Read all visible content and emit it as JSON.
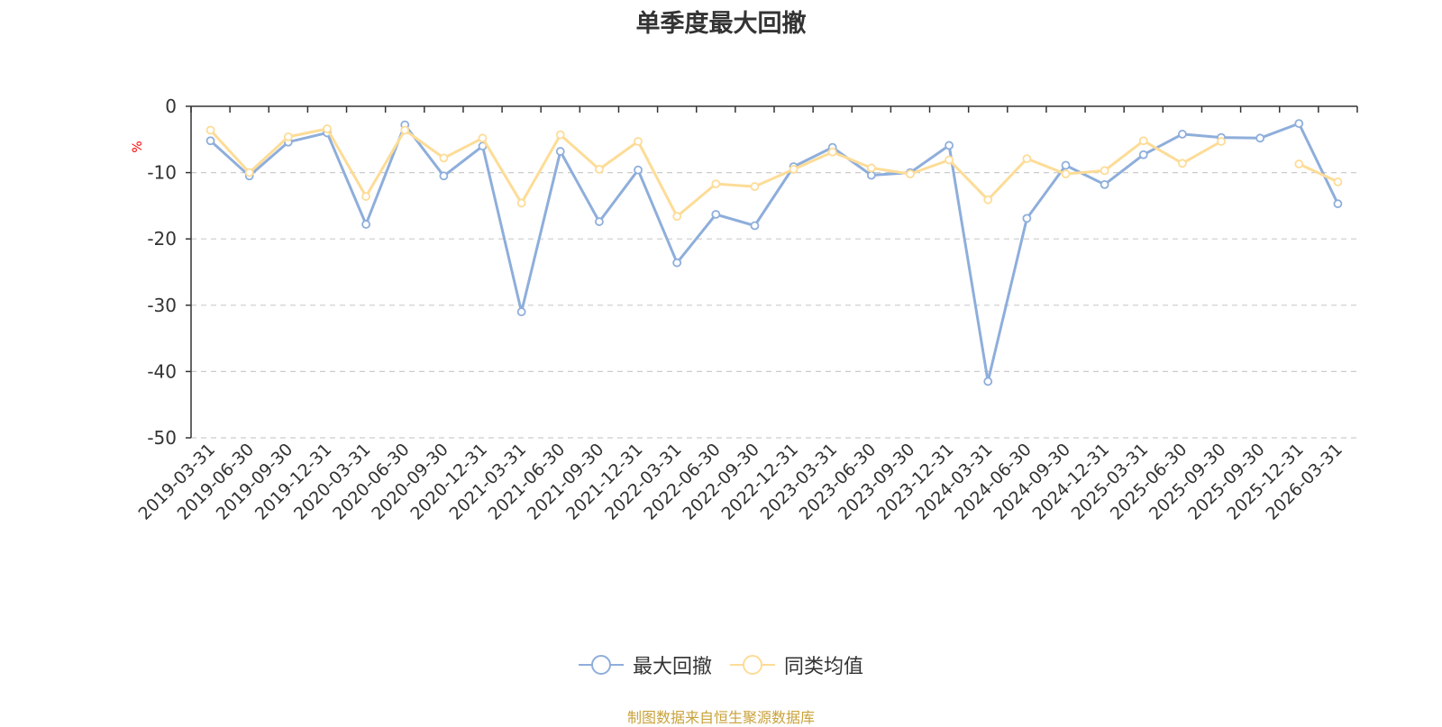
{
  "chart_data": {
    "type": "line",
    "title": "单季度最大回撤",
    "ylabel": "%",
    "ylim": [
      -50,
      0
    ],
    "yticks": [
      0,
      -10,
      -20,
      -30,
      -40,
      -50
    ],
    "grid": true,
    "legend_position": "bottom",
    "categories": [
      "2019-03-31",
      "2019-06-30",
      "2019-09-30",
      "2019-12-31",
      "2020-03-31",
      "2020-06-30",
      "2020-09-30",
      "2020-12-31",
      "2021-03-31",
      "2021-06-30",
      "2021-09-30",
      "2021-12-31",
      "2022-03-31",
      "2022-06-30",
      "2022-09-30",
      "2022-12-31",
      "2023-03-31",
      "2023-06-30",
      "2023-09-30",
      "2023-12-31",
      "2024-03-31",
      "2024-06-30",
      "2024-09-30",
      "2024-12-31",
      "2025-03-31",
      "2025-06-30",
      "2025-09-30",
      "2025-09-30",
      "2025-12-31",
      "2026-03-31"
    ],
    "series": [
      {
        "name": "最大回撤",
        "color": "#8eaedb",
        "values": [
          -5.2,
          -10.5,
          -5.4,
          -4.0,
          -17.8,
          -2.8,
          -10.5,
          -6.0,
          -31.0,
          -6.8,
          -17.4,
          -9.6,
          -23.6,
          -16.3,
          -18.0,
          -9.1,
          -6.2,
          -10.4,
          -10.0,
          -5.9,
          -41.5,
          -16.9,
          -8.9,
          -11.8,
          -7.3,
          -4.2,
          -4.7,
          -4.8,
          -2.6,
          -14.7
        ]
      },
      {
        "name": "同类均值",
        "color": "#fddc97",
        "values": [
          -3.6,
          -10.0,
          -4.6,
          -3.4,
          -13.6,
          -3.6,
          -7.8,
          -4.8,
          -14.6,
          -4.3,
          -9.5,
          -5.3,
          -16.6,
          -11.7,
          -12.1,
          -9.5,
          -6.9,
          -9.3,
          -10.2,
          -8.1,
          -14.1,
          -7.9,
          -10.2,
          -9.7,
          -5.2,
          -8.6,
          -5.3,
          null,
          -8.7,
          -11.4
        ]
      }
    ]
  },
  "footer": {
    "source": "制图数据来自恒生聚源数据库"
  }
}
